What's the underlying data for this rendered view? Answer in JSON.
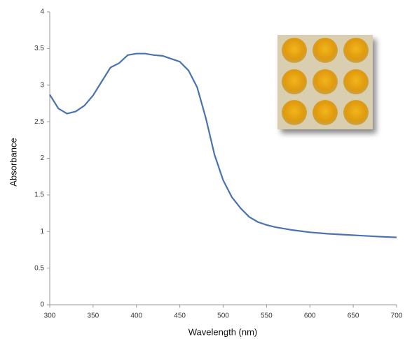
{
  "chart_data": {
    "type": "line",
    "x_label": "Wavelength (nm)",
    "y_label": "Absorbance",
    "x": [
      300,
      310,
      320,
      330,
      340,
      350,
      360,
      370,
      380,
      390,
      400,
      410,
      420,
      430,
      440,
      450,
      460,
      470,
      480,
      490,
      500,
      510,
      520,
      530,
      540,
      550,
      560,
      580,
      600,
      620,
      650,
      680,
      700
    ],
    "values": [
      2.87,
      2.68,
      2.61,
      2.64,
      2.72,
      2.86,
      3.05,
      3.24,
      3.3,
      3.41,
      3.43,
      3.43,
      3.41,
      3.4,
      3.36,
      3.32,
      3.2,
      2.97,
      2.55,
      2.05,
      1.7,
      1.47,
      1.32,
      1.2,
      1.13,
      1.09,
      1.06,
      1.02,
      0.99,
      0.97,
      0.95,
      0.93,
      0.92
    ],
    "color": "#4a72b0",
    "xlim": [
      300,
      700
    ],
    "xticks": [
      300,
      350,
      400,
      450,
      500,
      550,
      600,
      650,
      700
    ],
    "ylim": [
      0,
      4
    ],
    "yticks": [
      0,
      0.5,
      1,
      1.5,
      2,
      2.5,
      3,
      3.5,
      4
    ],
    "grid": false
  }
}
